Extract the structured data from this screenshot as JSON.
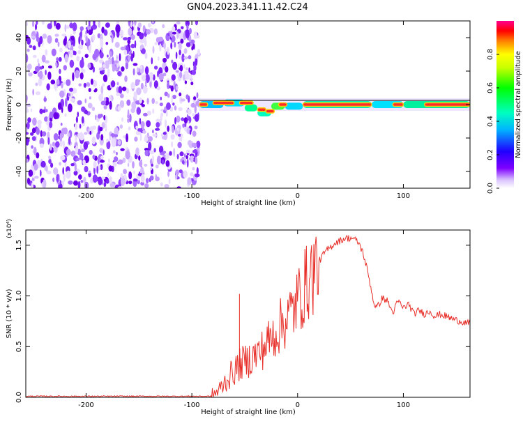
{
  "title": "GN04.2023.341.11.42.C24",
  "chart_data": [
    {
      "type": "heatmap",
      "xlabel": "Height of straight line (km)",
      "ylabel": "Frequency (Hz)",
      "xlim": [
        -257,
        163
      ],
      "ylim": [
        -50,
        50
      ],
      "x_ticks": [
        -200,
        -100,
        0,
        100
      ],
      "y_ticks": [
        -40,
        -20,
        0,
        20,
        40
      ],
      "noise_region_x": [
        -257,
        -93
      ],
      "signal_line_freq": 0,
      "colorbar": {
        "label": "Normalized spectral amplitude",
        "range": [
          0,
          1
        ],
        "ticks": [
          "0.0",
          "0.2",
          "0.4",
          "0.6",
          "0.8"
        ],
        "colors": [
          "#ffffff",
          "#7f00ff",
          "#0000ff",
          "#00ffff",
          "#00ff00",
          "#ffff00",
          "#ff0000",
          "#ff0080"
        ]
      }
    },
    {
      "type": "line",
      "xlabel": "Height of straight line (km)",
      "ylabel": "SNR (10 * v/v)",
      "y_scale_label": "(x10⁴)",
      "xlim": [
        -257,
        163
      ],
      "ylim": [
        0,
        1.65
      ],
      "x_ticks": [
        -200,
        -100,
        0,
        100
      ],
      "y_ticks": [
        0.0,
        0.5,
        1.0,
        1.5
      ],
      "y_tick_labels": [
        "0.0",
        "0.5",
        "1.0",
        "1.5"
      ],
      "color": "#e8302a",
      "x": [
        -257,
        -120,
        -82,
        -75,
        -65,
        -55,
        -45,
        -35,
        -25,
        -15,
        -5,
        5,
        15,
        25,
        35,
        45,
        52,
        58,
        62,
        66,
        70,
        72,
        75,
        80,
        85,
        90,
        95,
        100,
        105,
        110,
        115,
        120,
        125,
        130,
        135,
        140,
        145,
        150,
        155,
        163
      ],
      "values": [
        0.01,
        0.01,
        0.01,
        0.06,
        0.2,
        0.32,
        0.38,
        0.45,
        0.58,
        0.72,
        0.85,
        1.05,
        1.25,
        1.42,
        1.52,
        1.57,
        1.57,
        1.52,
        1.42,
        1.25,
        1.05,
        0.93,
        0.88,
        0.98,
        0.95,
        0.83,
        0.95,
        0.88,
        0.92,
        0.82,
        0.86,
        0.82,
        0.85,
        0.8,
        0.82,
        0.8,
        0.78,
        0.76,
        0.75,
        0.72
      ]
    }
  ]
}
